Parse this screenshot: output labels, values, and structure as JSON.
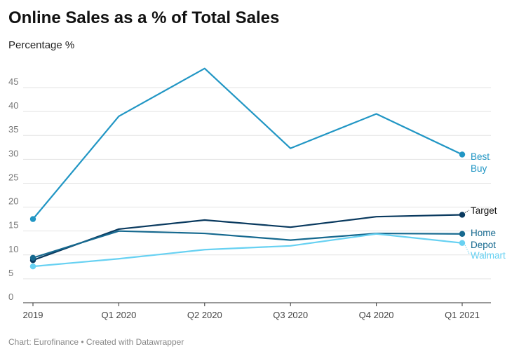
{
  "title": "Online Sales as a % of Total Sales",
  "subtitle": "Percentage %",
  "footer": "Chart: Eurofinance • Created with Datawrapper",
  "chart_data": {
    "type": "line",
    "title": "Online Sales as a % of Total Sales",
    "ylabel": "Percentage %",
    "xlabel": "",
    "categories": [
      "2019",
      "Q1 2020",
      "Q2 2020",
      "Q3 2020",
      "Q4 2020",
      "Q1 2021"
    ],
    "ylim": [
      0,
      50
    ],
    "yticks": [
      0,
      5,
      10,
      15,
      20,
      25,
      30,
      35,
      40,
      45
    ],
    "grid": "horizontal",
    "legend": "direct labels at line ends",
    "series": [
      {
        "name": "Best Buy",
        "label_lines": [
          "Best",
          "Buy"
        ],
        "color": "#2196c4",
        "values": [
          17.5,
          39.0,
          49.0,
          32.3,
          39.5,
          31.0
        ]
      },
      {
        "name": "Target",
        "label_lines": [
          "Target"
        ],
        "color": "#0a3a5f",
        "values": [
          8.9,
          15.4,
          17.3,
          15.8,
          18.0,
          18.4
        ]
      },
      {
        "name": "Home Depot",
        "label_lines": [
          "Home",
          "Depot"
        ],
        "color": "#16698f",
        "values": [
          9.4,
          15.0,
          14.5,
          13.1,
          14.5,
          14.4
        ]
      },
      {
        "name": "Walmart",
        "label_lines": [
          "Walmart"
        ],
        "color": "#67d1f2",
        "values": [
          7.6,
          9.2,
          11.1,
          11.9,
          14.4,
          12.5
        ]
      }
    ]
  }
}
